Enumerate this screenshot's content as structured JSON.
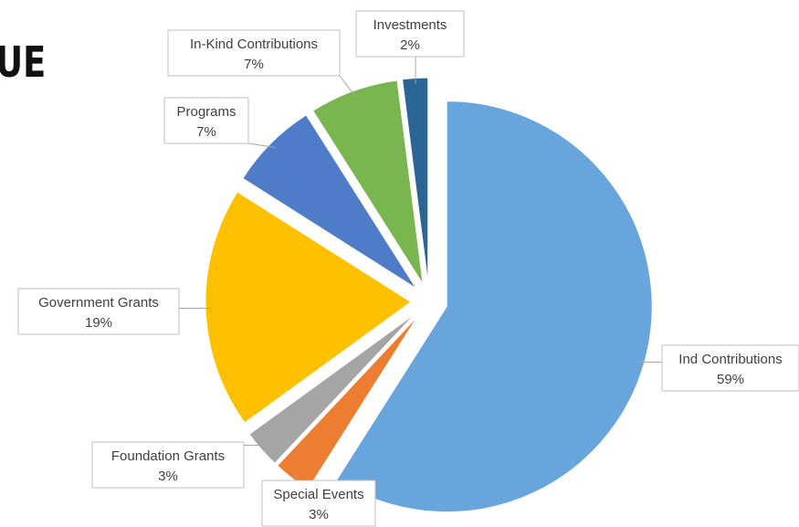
{
  "chart_data": {
    "type": "pie",
    "title": "UE",
    "categories": [
      "Ind Contributions",
      "Special Events",
      "Foundation Grants",
      "Government Grants",
      "Programs",
      "In-Kind Contributions",
      "Investments"
    ],
    "values": [
      59,
      3,
      3,
      19,
      7,
      7,
      2
    ],
    "value_labels": [
      "59%",
      "3%",
      "3%",
      "19%",
      "7%",
      "7%",
      "2%"
    ],
    "colors": [
      "#67a5dc",
      "#ed7d31",
      "#a5a5a5",
      "#ffc000",
      "#4e7cc9",
      "#7ab650",
      "#2a6596"
    ]
  }
}
